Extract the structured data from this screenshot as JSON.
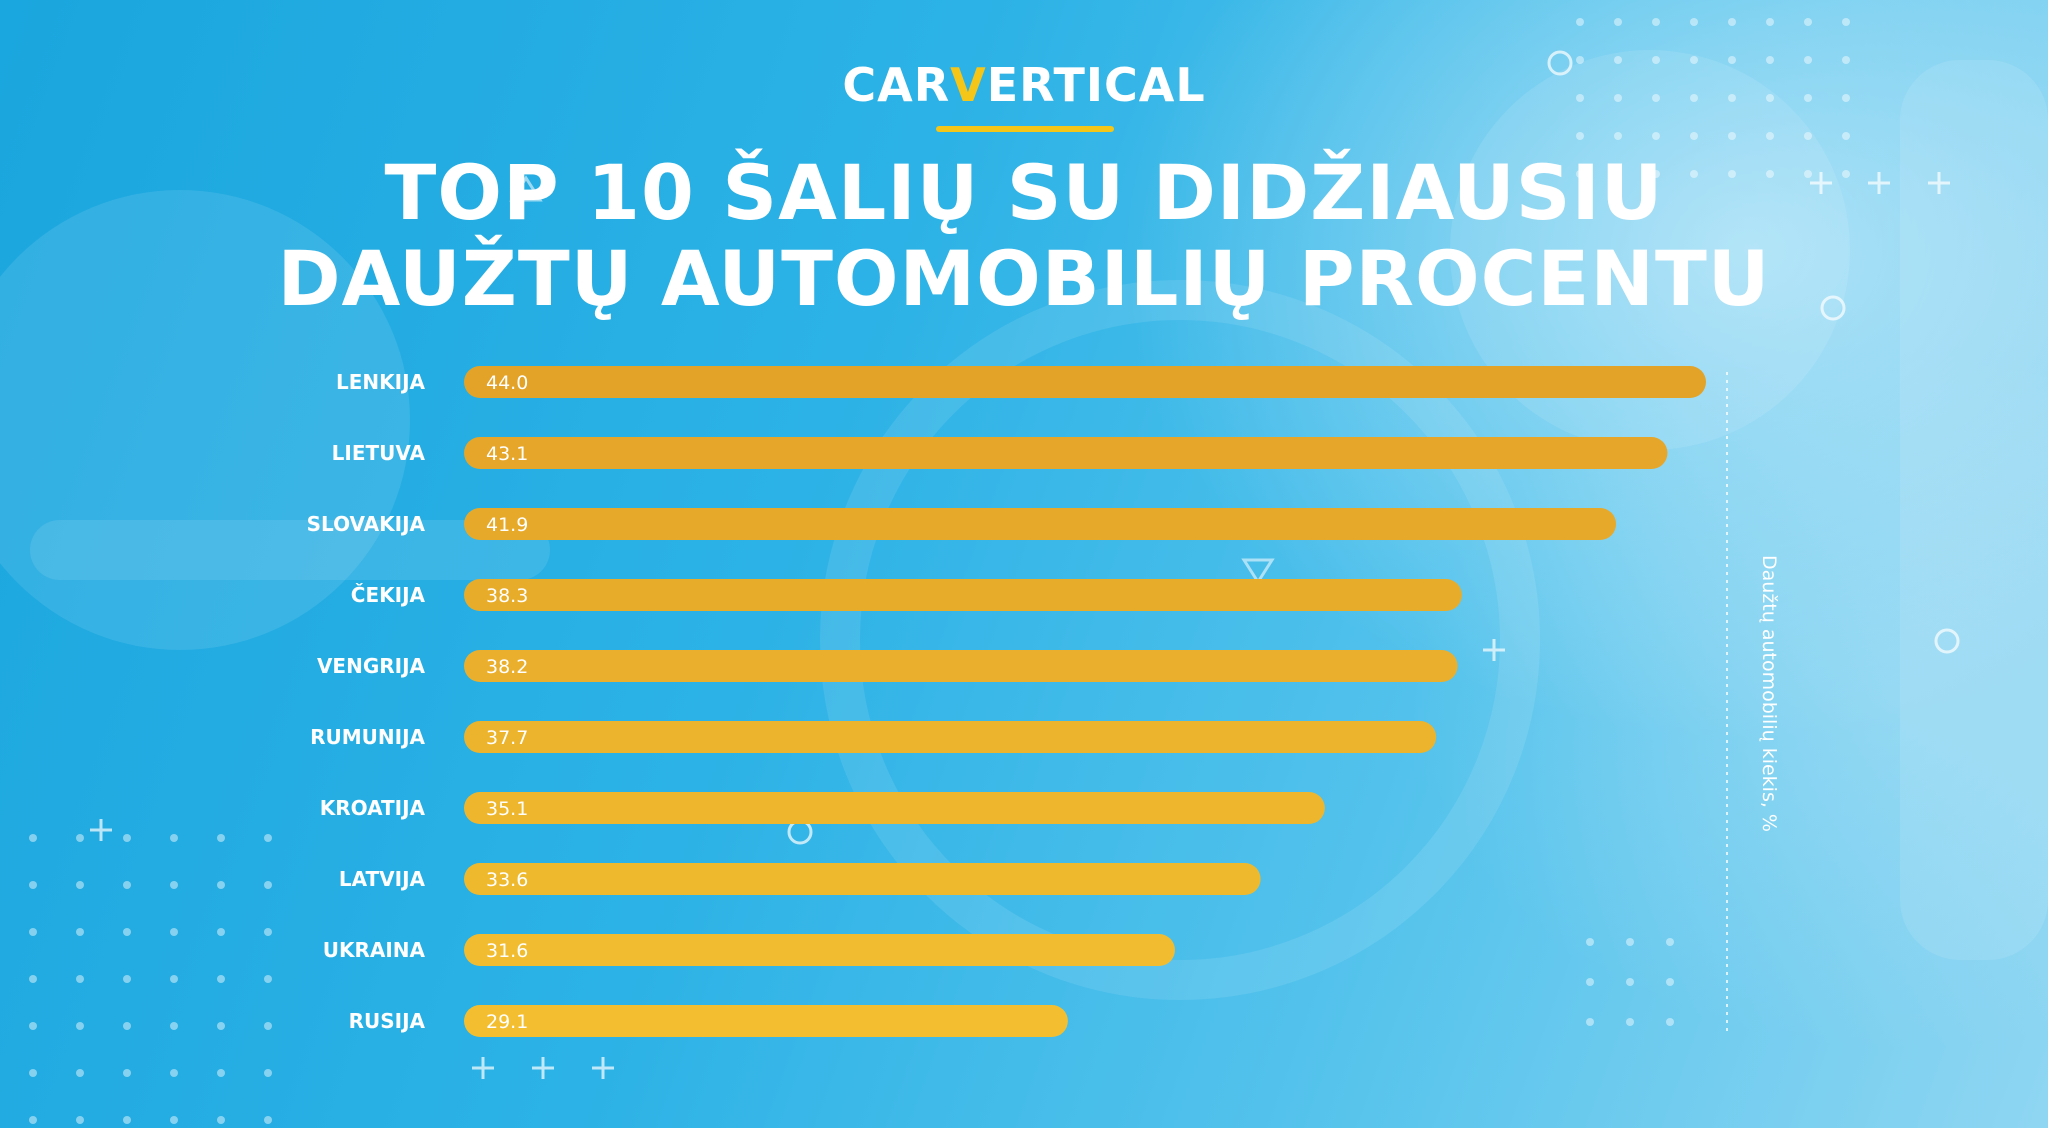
{
  "brand": {
    "part1": "CAR",
    "part2": "V",
    "part3": "ERTICAL"
  },
  "title": {
    "line1": "TOP 10 ŠALIŲ SU DIDŽIAUSIU",
    "line2": "DAUŽTŲ AUTOMOBILIŲ PROCENTU"
  },
  "colors": {
    "bar_dark": "#e3a328",
    "bar_light": "#f3bf30",
    "accent": "#f5c518"
  },
  "chart_data": {
    "type": "bar",
    "orientation": "horizontal",
    "title": "TOP 10 ŠALIŲ SU DIDŽIAUSIU DAUŽTŲ AUTOMOBILIŲ PROCENTU",
    "xlabel": "Daužtų automobilių kiekis, %",
    "ylabel": "",
    "categories": [
      "LENKIJA",
      "LIETUVA",
      "SLOVAKIJA",
      "ČEKIJA",
      "VENGRIJA",
      "RUMUNIJA",
      "KROATIJA",
      "LATVIJA",
      "UKRAINA",
      "RUSIJA"
    ],
    "values": [
      44.0,
      43.1,
      41.9,
      38.3,
      38.2,
      37.7,
      35.1,
      33.6,
      31.6,
      29.1
    ],
    "value_labels": [
      "44.0",
      "43.1",
      "41.9",
      "38.3",
      "38.2",
      "37.7",
      "35.1",
      "33.6",
      "31.6",
      "29.1"
    ],
    "xlim": [
      15,
      44.0
    ],
    "grid": false
  }
}
